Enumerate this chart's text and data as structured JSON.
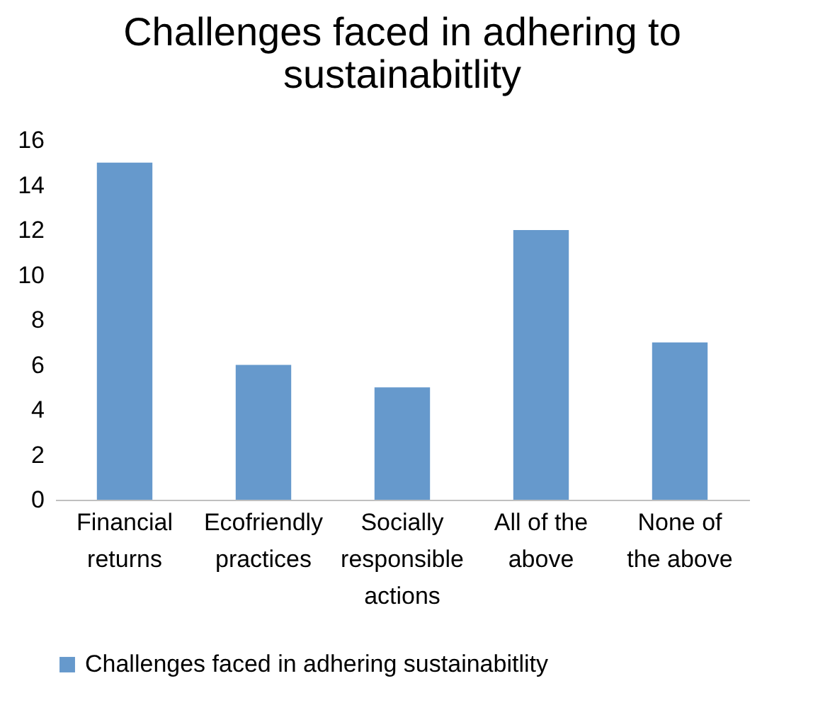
{
  "chart_data": {
    "type": "bar",
    "title": "Challenges faced in adhering to sustainabitlity",
    "categories": [
      "Financial returns",
      "Ecofriendly practices",
      "Socially responsible actions",
      "All of the above",
      "None of the above"
    ],
    "series": [
      {
        "name": "Challenges faced in adhering sustainabitlity",
        "color": "#6699cc",
        "values": [
          15,
          6,
          5,
          12,
          7
        ]
      }
    ],
    "ylim": [
      0,
      16
    ],
    "yticks": [
      0,
      2,
      4,
      6,
      8,
      10,
      12,
      14,
      16
    ],
    "grid": false,
    "legend": "bottom"
  }
}
